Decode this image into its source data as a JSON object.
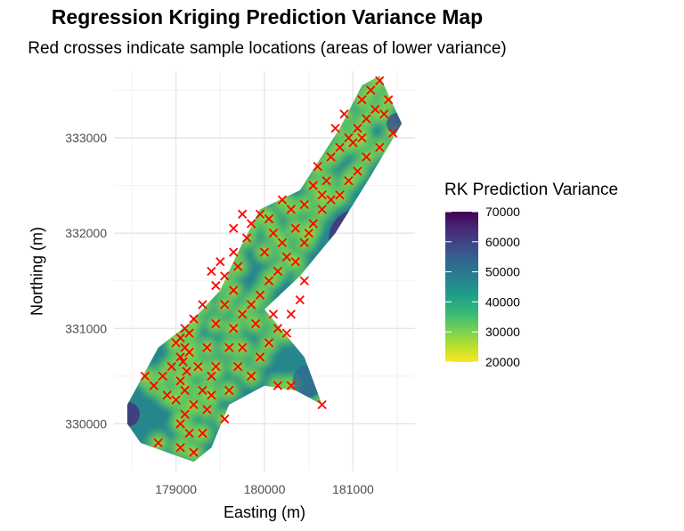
{
  "chart_data": {
    "type": "heatmap",
    "title": "Regression Kriging Prediction Variance Map",
    "subtitle": "Red crosses indicate sample locations (areas of lower variance)",
    "xlabel": "Easting (m)",
    "ylabel": "Northing (m)",
    "xlim": [
      178300,
      181700
    ],
    "ylim": [
      329500,
      333700
    ],
    "x_ticks": [
      179000,
      180000,
      181000
    ],
    "y_ticks": [
      330000,
      331000,
      332000,
      333000
    ],
    "x_tick_labels": [
      "179000",
      "180000",
      "181000"
    ],
    "y_tick_labels": [
      "330000",
      "331000",
      "332000",
      "333000"
    ],
    "grid": true,
    "legend": {
      "title": "RK Prediction Variance",
      "placement": "right",
      "ticks": [
        20000,
        30000,
        40000,
        50000,
        60000,
        70000
      ],
      "tick_labels": [
        "20000",
        "30000",
        "40000",
        "50000",
        "60000",
        "70000"
      ],
      "colormap": "viridis (reversed)",
      "colors": [
        "#fde725",
        "#b5de2b",
        "#6ece58",
        "#35b779",
        "#1f9e89",
        "#26828e",
        "#31688e",
        "#3e4989",
        "#482878",
        "#440154"
      ]
    },
    "marker_color": "#ff0000",
    "marker": "x",
    "region_outline": [
      [
        178450,
        330200
      ],
      [
        178800,
        330800
      ],
      [
        179150,
        331050
      ],
      [
        179500,
        331400
      ],
      [
        179700,
        331800
      ],
      [
        179950,
        332250
      ],
      [
        180400,
        332450
      ],
      [
        180850,
        333100
      ],
      [
        181100,
        333550
      ],
      [
        181300,
        333650
      ],
      [
        181550,
        333150
      ],
      [
        181200,
        332600
      ],
      [
        180800,
        332000
      ],
      [
        180400,
        331550
      ],
      [
        180000,
        331200
      ],
      [
        180450,
        330700
      ],
      [
        180650,
        330200
      ],
      [
        180350,
        330350
      ],
      [
        180000,
        330400
      ],
      [
        179600,
        330200
      ],
      [
        179400,
        329750
      ],
      [
        179200,
        329600
      ],
      [
        178900,
        329700
      ],
      [
        178600,
        329800
      ],
      [
        178450,
        330000
      ]
    ],
    "samples": [
      [
        178750,
        330400
      ],
      [
        178850,
        330500
      ],
      [
        178900,
        330300
      ],
      [
        178800,
        329800
      ],
      [
        178950,
        330600
      ],
      [
        179050,
        330700
      ],
      [
        179100,
        330800
      ],
      [
        179050,
        330900
      ],
      [
        179100,
        331000
      ],
      [
        179150,
        330950
      ],
      [
        179000,
        330850
      ],
      [
        179080,
        330650
      ],
      [
        179120,
        330550
      ],
      [
        179050,
        330450
      ],
      [
        179100,
        330350
      ],
      [
        179000,
        330250
      ],
      [
        179100,
        330100
      ],
      [
        179050,
        330000
      ],
      [
        179150,
        329900
      ],
      [
        179050,
        329750
      ],
      [
        179200,
        329700
      ],
      [
        179300,
        329900
      ],
      [
        179350,
        330150
      ],
      [
        179200,
        330200
      ],
      [
        179300,
        330350
      ],
      [
        179400,
        330500
      ],
      [
        179450,
        330600
      ],
      [
        179350,
        330800
      ],
      [
        179450,
        331050
      ],
      [
        179550,
        331250
      ],
      [
        179650,
        331400
      ],
      [
        179450,
        331450
      ],
      [
        179550,
        331550
      ],
      [
        179700,
        331650
      ],
      [
        179650,
        331800
      ],
      [
        179800,
        331950
      ],
      [
        179850,
        332100
      ],
      [
        179750,
        332200
      ],
      [
        179950,
        332200
      ],
      [
        180050,
        332150
      ],
      [
        180100,
        332000
      ],
      [
        180200,
        331900
      ],
      [
        180250,
        331750
      ],
      [
        180150,
        331600
      ],
      [
        180050,
        331500
      ],
      [
        179950,
        331350
      ],
      [
        179850,
        331250
      ],
      [
        179750,
        331150
      ],
      [
        179650,
        331000
      ],
      [
        179600,
        330800
      ],
      [
        179700,
        330600
      ],
      [
        179850,
        330500
      ],
      [
        179950,
        330700
      ],
      [
        180050,
        330850
      ],
      [
        180150,
        331000
      ],
      [
        180300,
        331150
      ],
      [
        180400,
        331300
      ],
      [
        180450,
        331500
      ],
      [
        180350,
        331700
      ],
      [
        180450,
        331900
      ],
      [
        180550,
        332100
      ],
      [
        180650,
        332250
      ],
      [
        180750,
        332350
      ],
      [
        180850,
        332400
      ],
      [
        180700,
        332550
      ],
      [
        180550,
        332500
      ],
      [
        180450,
        332300
      ],
      [
        180300,
        332250
      ],
      [
        180600,
        332700
      ],
      [
        180750,
        332800
      ],
      [
        180850,
        332900
      ],
      [
        180950,
        333000
      ],
      [
        181050,
        333100
      ],
      [
        181150,
        333200
      ],
      [
        181250,
        333300
      ],
      [
        181350,
        333250
      ],
      [
        181450,
        333050
      ],
      [
        181300,
        332900
      ],
      [
        181150,
        332800
      ],
      [
        181050,
        332650
      ],
      [
        180950,
        332550
      ],
      [
        181100,
        333400
      ],
      [
        181200,
        333500
      ],
      [
        181300,
        333600
      ],
      [
        181400,
        333400
      ],
      [
        181000,
        332950
      ],
      [
        180800,
        333100
      ],
      [
        180900,
        333250
      ],
      [
        181100,
        333000
      ],
      [
        180650,
        332400
      ],
      [
        180150,
        330400
      ],
      [
        180300,
        330400
      ],
      [
        180650,
        330200
      ],
      [
        179550,
        330050
      ],
      [
        179250,
        330600
      ],
      [
        179400,
        330300
      ],
      [
        178650,
        330500
      ],
      [
        179200,
        331100
      ],
      [
        179300,
        331250
      ],
      [
        179150,
        330750
      ],
      [
        179600,
        330350
      ],
      [
        179750,
        330800
      ],
      [
        179900,
        331050
      ],
      [
        180100,
        331150
      ],
      [
        180250,
        330950
      ],
      [
        179500,
        331700
      ],
      [
        179400,
        331600
      ],
      [
        179650,
        332050
      ],
      [
        180000,
        331800
      ],
      [
        180350,
        332050
      ],
      [
        180500,
        332000
      ],
      [
        180200,
        332350
      ]
    ],
    "low_variance_value": 25000,
    "high_variance_value": 70000
  }
}
